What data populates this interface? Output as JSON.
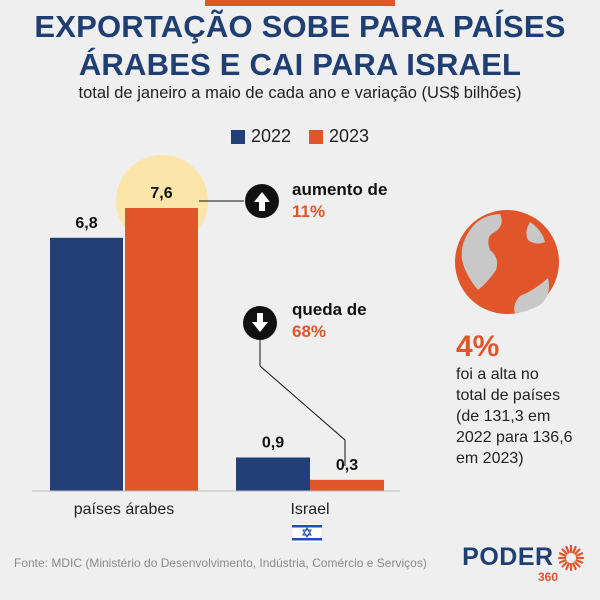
{
  "title_line1": "EXPORTAÇÃO SOBE PARA PAÍSES",
  "title_line2": "ÁRABES E CAI PARA ISRAEL",
  "subtitle": "total de janeiro a maio de cada ano e variação (US$ bilhões)",
  "colors": {
    "y2022": "#233f77",
    "y2023": "#e0562a",
    "highlight": "#fbe5a8"
  },
  "annotations": {
    "up_label": "aumento de",
    "up_value": "11%",
    "down_label": "queda de",
    "down_value": "68%"
  },
  "side_note": {
    "value": "4%",
    "text_line1": "foi a alta no",
    "text_line2": "total de países",
    "text_line3": "(de 131,3 em",
    "text_line4": "2022 para 136,6",
    "text_line5": "em 2023)"
  },
  "source": "Fonte: MDIC (Ministério do Desenvolvimento, Indústria, Comércio e Serviços)",
  "logo": {
    "word": "PODER",
    "sub": "360"
  },
  "chart_data": {
    "type": "bar",
    "categories": [
      "países árabes",
      "Israel"
    ],
    "series": [
      {
        "name": "2022",
        "values": [
          6.8,
          0.9
        ],
        "labels": [
          "6,8",
          "0,9"
        ]
      },
      {
        "name": "2023",
        "values": [
          7.6,
          0.3
        ],
        "labels": [
          "7,6",
          "0,3"
        ]
      }
    ],
    "ylim": [
      0,
      7.6
    ],
    "legend_position": "top-center",
    "grid": false
  }
}
